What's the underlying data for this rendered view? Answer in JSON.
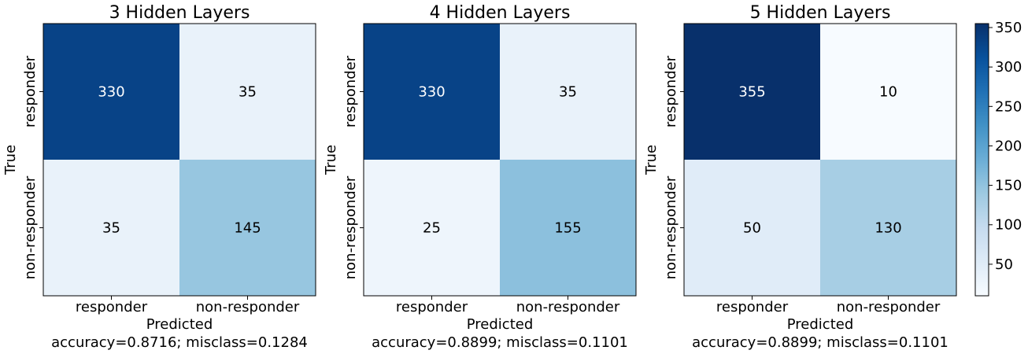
{
  "chart_data": [
    {
      "type": "heatmap",
      "title": "3 Hidden Layers",
      "xlabel": "Predicted",
      "ylabel": "True",
      "footer": "accuracy=0.8716; misclass=0.1284",
      "x_categories": [
        "responder",
        "non-responder"
      ],
      "y_categories": [
        "responder",
        "non-responder"
      ],
      "values": [
        [
          330,
          35
        ],
        [
          35,
          145
        ]
      ]
    },
    {
      "type": "heatmap",
      "title": "4 Hidden Layers",
      "xlabel": "Predicted",
      "ylabel": "True",
      "footer": "accuracy=0.8899; misclass=0.1101",
      "x_categories": [
        "responder",
        "non-responder"
      ],
      "y_categories": [
        "responder",
        "non-responder"
      ],
      "values": [
        [
          330,
          35
        ],
        [
          25,
          155
        ]
      ]
    },
    {
      "type": "heatmap",
      "title": "5 Hidden Layers",
      "xlabel": "Predicted",
      "ylabel": "True",
      "footer": "accuracy=0.8899; misclass=0.1101",
      "x_categories": [
        "responder",
        "non-responder"
      ],
      "y_categories": [
        "responder",
        "non-responder"
      ],
      "values": [
        [
          355,
          10
        ],
        [
          50,
          130
        ]
      ]
    }
  ],
  "colorbar": {
    "colormap": "Blues",
    "range": [
      10,
      355
    ],
    "ticks": [
      50,
      100,
      150,
      200,
      250,
      300,
      350
    ]
  }
}
